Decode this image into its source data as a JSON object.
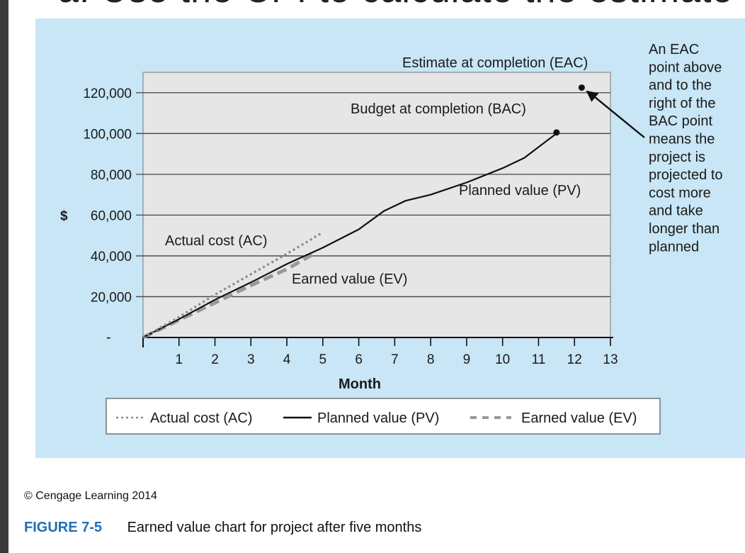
{
  "header": {
    "cut_text": "a. Use the CPI to calculate the estimate"
  },
  "credit": "© Cengage Learning 2014",
  "caption": {
    "figure_no": "FIGURE 7-5",
    "text": "Earned value chart for project after five months"
  },
  "chart_data": {
    "type": "line",
    "xlabel": "Month",
    "ylabel": "$",
    "xlim": [
      0,
      13
    ],
    "ylim": [
      0,
      130000
    ],
    "x_ticks": [
      "1",
      "2",
      "3",
      "4",
      "5",
      "6",
      "7",
      "8",
      "9",
      "10",
      "11",
      "12",
      "13"
    ],
    "y_ticks": [
      {
        "value": 0,
        "label": "-"
      },
      {
        "value": 20000,
        "label": "20,000"
      },
      {
        "value": 40000,
        "label": "40,000"
      },
      {
        "value": 60000,
        "label": "60,000"
      },
      {
        "value": 80000,
        "label": "80,000"
      },
      {
        "value": 100000,
        "label": "100,000"
      },
      {
        "value": 120000,
        "label": "120,000"
      }
    ],
    "grid": true,
    "series": [
      {
        "name": "Actual cost (AC)",
        "style": "dotted",
        "color": "#8a8a8a",
        "points": [
          [
            0,
            0
          ],
          [
            1,
            10000
          ],
          [
            2,
            21000
          ],
          [
            3,
            31000
          ],
          [
            4,
            41000
          ],
          [
            5,
            51500
          ]
        ]
      },
      {
        "name": "Planned value (PV)",
        "style": "solid",
        "color": "#111111",
        "points": [
          [
            0,
            0
          ],
          [
            1,
            9000
          ],
          [
            2,
            18500
          ],
          [
            3,
            27000
          ],
          [
            4,
            36000
          ],
          [
            5,
            44000
          ],
          [
            6,
            53000
          ],
          [
            6.7,
            62000
          ],
          [
            7.3,
            67000
          ],
          [
            8,
            70000
          ],
          [
            9,
            76000
          ],
          [
            10,
            83000
          ],
          [
            10.6,
            88000
          ],
          [
            11.5,
            100000
          ]
        ]
      },
      {
        "name": "Earned value (EV)",
        "style": "dashed",
        "color": "#999999",
        "points": [
          [
            0,
            0
          ],
          [
            1,
            8500
          ],
          [
            2,
            17000
          ],
          [
            3,
            25500
          ],
          [
            4,
            33500
          ],
          [
            4.7,
            40500
          ]
        ]
      }
    ],
    "points": [
      {
        "name": "Budget at completion (BAC)",
        "x": 11.5,
        "y": 100500
      },
      {
        "name": "Estimate at completion (EAC)",
        "x": 12.2,
        "y": 122500
      }
    ],
    "annotations": {
      "eac": "Estimate at completion (EAC)",
      "bac": "Budget at completion (BAC)",
      "pv": "Planned value (PV)",
      "ac": "Actual cost (AC)",
      "ev": "Earned value (EV)",
      "note_lines": [
        "An EAC",
        "point above",
        "and to the",
        "right of the",
        "BAC point",
        "means the",
        "project is",
        "projected to",
        "cost more",
        "and take",
        "longer than",
        "planned"
      ]
    },
    "legend": {
      "placement": "bottom",
      "entries": [
        "Actual cost (AC)",
        "Planned value (PV)",
        "Earned value (EV)"
      ]
    }
  }
}
